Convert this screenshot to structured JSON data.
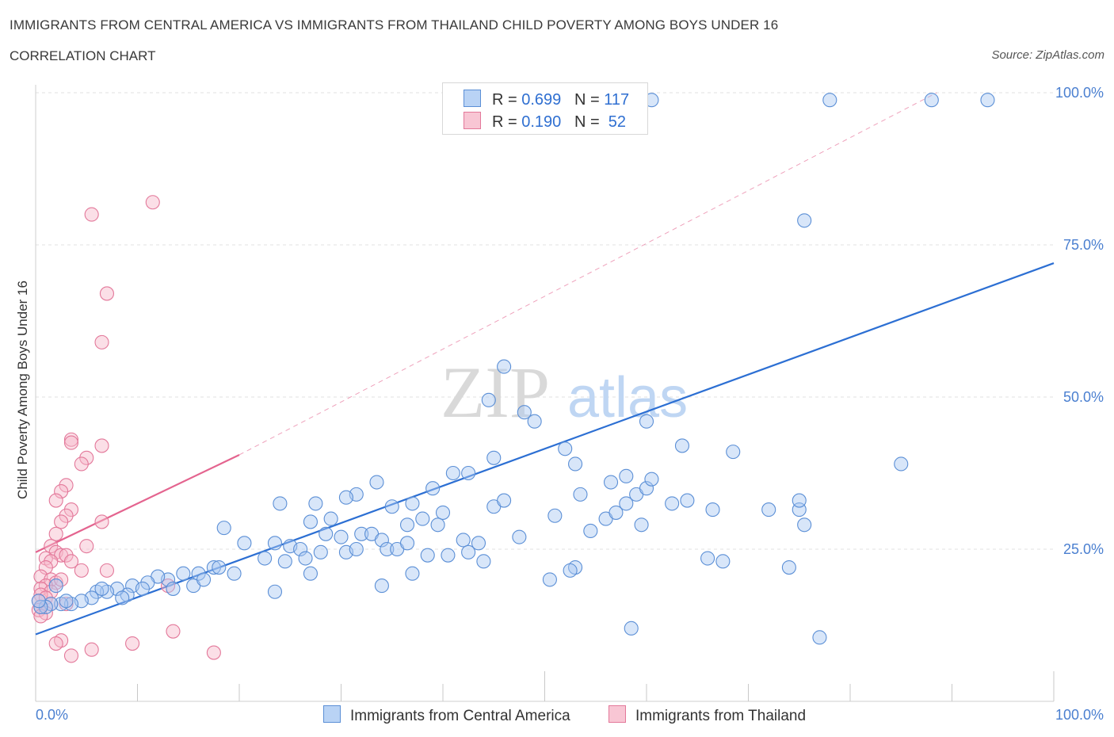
{
  "header": {
    "title": "IMMIGRANTS FROM CENTRAL AMERICA VS IMMIGRANTS FROM THAILAND CHILD POVERTY AMONG BOYS UNDER 16",
    "subtitle": "CORRELATION CHART",
    "source": "Source: ZipAtlas.com"
  },
  "watermark": {
    "zip": "ZIP",
    "atlas": "atlas"
  },
  "legend": {
    "rows": [
      {
        "r_label": "R =",
        "r_value": "0.699",
        "n_label": "N =",
        "n_value": "117",
        "color": "#a9c8f2"
      },
      {
        "r_label": "R =",
        "r_value": "0.190",
        "n_label": "N =",
        "n_value": "52",
        "color": "#f6b8c9"
      }
    ]
  },
  "bottom_legend": {
    "central_america": "Immigrants from Central America",
    "thailand": "Immigrants from Thailand"
  },
  "colors": {
    "blue_fill": "#a9c8f2",
    "blue_stroke": "#5b8fd6",
    "blue_line": "#2c6fd3",
    "pink_fill": "#f6b8c9",
    "pink_stroke": "#e3789a",
    "pink_line": "#e4648f",
    "grid": "#e2e2e2",
    "tick_text": "#4a7fd0"
  },
  "chart_data": {
    "type": "scatter",
    "xlabel": "",
    "ylabel": "Child Poverty Among Boys Under 16",
    "xlim": [
      0,
      100
    ],
    "ylim": [
      0,
      100
    ],
    "x_tick_labels": [
      "0.0%",
      "100.0%"
    ],
    "y_tick_labels": [
      "25.0%",
      "50.0%",
      "75.0%",
      "100.0%"
    ],
    "y_ticks": [
      25,
      50,
      75,
      100
    ],
    "grid": true,
    "series": [
      {
        "name": "Immigrants from Central America",
        "color": "#a9c8f2",
        "trend": {
          "x": [
            0,
            100
          ],
          "y": [
            11.0,
            72.0
          ],
          "style": "solid",
          "color": "#2c6fd3"
        },
        "points": [
          [
            60.5,
            98.8
          ],
          [
            78.0,
            98.8
          ],
          [
            93.5,
            98.8
          ],
          [
            88.0,
            98.8
          ],
          [
            75.5,
            79.0
          ],
          [
            46.0,
            55.0
          ],
          [
            44.5,
            49.5
          ],
          [
            48.0,
            47.5
          ],
          [
            49.0,
            46.0
          ],
          [
            60.0,
            46.0
          ],
          [
            63.5,
            42.0
          ],
          [
            52.0,
            41.5
          ],
          [
            68.5,
            41.0
          ],
          [
            85.0,
            39.0
          ],
          [
            45.0,
            40.0
          ],
          [
            42.5,
            37.5
          ],
          [
            41.0,
            37.5
          ],
          [
            56.5,
            36.0
          ],
          [
            33.5,
            36.0
          ],
          [
            39.0,
            35.0
          ],
          [
            31.5,
            34.0
          ],
          [
            30.5,
            33.5
          ],
          [
            24.0,
            32.5
          ],
          [
            27.5,
            32.5
          ],
          [
            29.0,
            30.0
          ],
          [
            40.0,
            31.0
          ],
          [
            45.0,
            32.0
          ],
          [
            46.0,
            33.0
          ],
          [
            53.5,
            34.0
          ],
          [
            59.0,
            34.0
          ],
          [
            64.0,
            33.0
          ],
          [
            66.5,
            31.5
          ],
          [
            72.0,
            31.5
          ],
          [
            75.0,
            31.5
          ],
          [
            60.0,
            35.0
          ],
          [
            62.5,
            32.5
          ],
          [
            58.0,
            32.5
          ],
          [
            35.0,
            32.0
          ],
          [
            37.0,
            32.5
          ],
          [
            27.0,
            29.5
          ],
          [
            18.5,
            28.5
          ],
          [
            20.5,
            26.0
          ],
          [
            23.5,
            26.0
          ],
          [
            25.0,
            25.5
          ],
          [
            26.0,
            25.0
          ],
          [
            28.5,
            27.5
          ],
          [
            30.0,
            27.0
          ],
          [
            32.0,
            27.5
          ],
          [
            33.0,
            27.5
          ],
          [
            36.5,
            29.0
          ],
          [
            38.0,
            30.0
          ],
          [
            39.5,
            29.0
          ],
          [
            42.0,
            26.5
          ],
          [
            43.5,
            26.0
          ],
          [
            42.5,
            24.5
          ],
          [
            38.5,
            24.0
          ],
          [
            40.5,
            24.0
          ],
          [
            47.5,
            27.0
          ],
          [
            34.0,
            26.5
          ],
          [
            34.5,
            25.0
          ],
          [
            35.5,
            25.0
          ],
          [
            36.5,
            26.0
          ],
          [
            28.0,
            24.5
          ],
          [
            30.5,
            24.5
          ],
          [
            31.5,
            25.0
          ],
          [
            22.5,
            23.5
          ],
          [
            24.5,
            23.0
          ],
          [
            26.5,
            23.5
          ],
          [
            17.5,
            22.0
          ],
          [
            18.0,
            22.0
          ],
          [
            19.5,
            21.0
          ],
          [
            16.0,
            21.0
          ],
          [
            14.5,
            21.0
          ],
          [
            13.0,
            20.0
          ],
          [
            12.0,
            20.5
          ],
          [
            11.0,
            19.5
          ],
          [
            9.5,
            19.0
          ],
          [
            10.5,
            18.5
          ],
          [
            9.0,
            17.5
          ],
          [
            8.0,
            18.5
          ],
          [
            7.0,
            18.0
          ],
          [
            6.0,
            18.0
          ],
          [
            5.5,
            17.0
          ],
          [
            4.5,
            16.5
          ],
          [
            3.5,
            16.0
          ],
          [
            2.5,
            16.0
          ],
          [
            1.5,
            16.0
          ],
          [
            1.0,
            15.5
          ],
          [
            0.5,
            15.5
          ],
          [
            0.3,
            16.5
          ],
          [
            2.0,
            19.0
          ],
          [
            3.0,
            16.5
          ],
          [
            6.5,
            18.5
          ],
          [
            8.5,
            17.0
          ],
          [
            13.5,
            18.5
          ],
          [
            15.5,
            19.0
          ],
          [
            16.5,
            20.0
          ],
          [
            23.5,
            18.0
          ],
          [
            27.0,
            21.0
          ],
          [
            34.0,
            19.0
          ],
          [
            37.0,
            21.0
          ],
          [
            44.0,
            23.0
          ],
          [
            58.0,
            37.0
          ],
          [
            53.0,
            22.0
          ],
          [
            66.0,
            23.5
          ],
          [
            67.5,
            23.0
          ],
          [
            50.5,
            20.0
          ],
          [
            52.5,
            21.5
          ],
          [
            75.0,
            33.0
          ],
          [
            51.0,
            30.5
          ],
          [
            54.5,
            28.0
          ],
          [
            56.0,
            30.0
          ],
          [
            75.5,
            29.0
          ],
          [
            74.0,
            22.0
          ],
          [
            57.0,
            31.0
          ],
          [
            59.5,
            29.0
          ],
          [
            53.0,
            39.0
          ],
          [
            60.5,
            36.5
          ],
          [
            58.5,
            12.0
          ],
          [
            77.0,
            10.5
          ]
        ]
      },
      {
        "name": "Immigrants from Thailand",
        "color": "#f6b8c9",
        "trend": {
          "x": [
            0,
            20
          ],
          "y": [
            24.5,
            40.5
          ],
          "style": "solid",
          "color": "#e4648f",
          "extended": {
            "x": [
              20,
              88.5
            ],
            "y": [
              40.5,
              100
            ],
            "style": "dashed"
          }
        },
        "points": [
          [
            11.5,
            82.0
          ],
          [
            5.5,
            80.0
          ],
          [
            7.0,
            67.0
          ],
          [
            6.5,
            59.0
          ],
          [
            3.5,
            43.0
          ],
          [
            6.5,
            42.0
          ],
          [
            3.5,
            42.5
          ],
          [
            5.0,
            40.0
          ],
          [
            4.5,
            39.0
          ],
          [
            3.0,
            35.5
          ],
          [
            2.5,
            34.5
          ],
          [
            2.0,
            33.0
          ],
          [
            3.5,
            31.5
          ],
          [
            3.0,
            30.5
          ],
          [
            2.5,
            29.5
          ],
          [
            6.5,
            29.5
          ],
          [
            2.0,
            27.5
          ],
          [
            1.5,
            25.5
          ],
          [
            2.0,
            24.5
          ],
          [
            2.5,
            24.0
          ],
          [
            3.0,
            24.0
          ],
          [
            1.0,
            23.5
          ],
          [
            1.5,
            23.0
          ],
          [
            3.5,
            23.0
          ],
          [
            1.0,
            22.0
          ],
          [
            4.5,
            21.5
          ],
          [
            7.0,
            21.5
          ],
          [
            0.5,
            20.5
          ],
          [
            1.5,
            20.0
          ],
          [
            2.0,
            19.5
          ],
          [
            1.0,
            19.0
          ],
          [
            0.5,
            18.5
          ],
          [
            1.5,
            18.0
          ],
          [
            0.5,
            17.5
          ],
          [
            1.0,
            17.0
          ],
          [
            0.3,
            16.5
          ],
          [
            1.5,
            16.0
          ],
          [
            0.5,
            15.5
          ],
          [
            0.3,
            15.0
          ],
          [
            1.0,
            14.5
          ],
          [
            0.5,
            14.0
          ],
          [
            3.0,
            16.0
          ],
          [
            13.0,
            19.0
          ],
          [
            2.5,
            10.0
          ],
          [
            2.0,
            9.5
          ],
          [
            9.5,
            9.5
          ],
          [
            5.5,
            8.5
          ],
          [
            3.5,
            7.5
          ],
          [
            13.5,
            11.5
          ],
          [
            17.5,
            8.0
          ],
          [
            5.0,
            25.5
          ],
          [
            2.5,
            20.0
          ]
        ]
      }
    ]
  }
}
